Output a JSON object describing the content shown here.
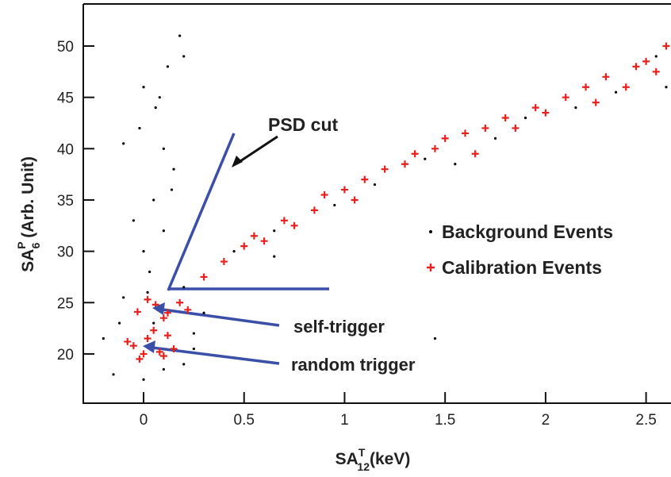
{
  "chart_data": {
    "type": "scatter",
    "xlabel": {
      "base": "SA",
      "sup": "T",
      "sub": "12",
      "rest": "(keV)"
    },
    "ylabel": {
      "base": "SA",
      "sup": "P",
      "sub": "6",
      "rest": " (Arb. Unit)"
    },
    "xlim": [
      -0.3,
      2.62
    ],
    "ylim": [
      15.2,
      54.1
    ],
    "xticks": [
      0,
      0.5,
      1,
      1.5,
      2,
      2.5
    ],
    "yticks": [
      20,
      25,
      30,
      35,
      40,
      45,
      50
    ],
    "annotations": [
      "PSD cut",
      "self-trigger",
      "random trigger"
    ],
    "series": [
      {
        "name": "Background Events",
        "color": "#000000",
        "marker": "dot",
        "x": [
          0.0,
          0.05,
          0.1,
          -0.02,
          0.08,
          0.12,
          0.18,
          0.2,
          0.15,
          0.03,
          -0.05,
          0.1,
          0.06,
          0.0,
          -0.1,
          0.14,
          0.02,
          -0.15,
          0.2,
          0.25,
          -0.12,
          0.0,
          0.3,
          0.1,
          -0.1,
          0.2,
          0.05,
          0.25,
          -0.2,
          0.45,
          0.65,
          0.95,
          1.15,
          1.4,
          1.55,
          1.75,
          1.9,
          2.15,
          2.35,
          2.55,
          2.6,
          0.65,
          1.45
        ],
        "values": [
          30,
          35,
          40,
          42,
          45,
          48,
          51,
          49,
          38,
          28,
          33,
          32,
          44,
          46,
          40.5,
          36,
          26,
          18,
          19,
          22,
          23,
          17.5,
          24,
          18.5,
          25.5,
          26.5,
          23,
          20.5,
          21.5,
          30,
          32,
          34.5,
          36.5,
          39,
          38.5,
          41,
          43,
          44,
          45.5,
          49,
          46,
          29.5,
          21.5
        ]
      },
      {
        "name": "Calibration Events",
        "color": "#e8201e",
        "marker": "plus",
        "x": [
          0.02,
          -0.05,
          0.08,
          0.12,
          -0.02,
          0.05,
          0.15,
          -0.08,
          0.1,
          0.0,
          0.06,
          0.12,
          0.02,
          0.18,
          0.1,
          0.22,
          -0.03,
          0.3,
          0.4,
          0.5,
          0.55,
          0.6,
          0.7,
          0.75,
          0.85,
          0.9,
          1.0,
          1.05,
          1.1,
          1.2,
          1.3,
          1.35,
          1.45,
          1.5,
          1.6,
          1.65,
          1.7,
          1.8,
          1.85,
          1.95,
          2.0,
          2.1,
          2.2,
          2.25,
          2.3,
          2.4,
          2.45,
          2.5,
          2.55,
          2.6
        ],
        "values": [
          21.5,
          20.8,
          20.2,
          21.8,
          19.5,
          22.3,
          20.5,
          21.2,
          19.8,
          20.0,
          24.8,
          24.0,
          25.3,
          25.0,
          23.5,
          24.3,
          24.1,
          27.5,
          29,
          30.5,
          31.5,
          31,
          33,
          32.5,
          34,
          35.5,
          36,
          35,
          37,
          38,
          38.5,
          39.5,
          40,
          41,
          41.5,
          39.5,
          42,
          43,
          42,
          44,
          43.5,
          45,
          46,
          44.5,
          47,
          46,
          48,
          48.5,
          47.5,
          50
        ]
      }
    ]
  }
}
